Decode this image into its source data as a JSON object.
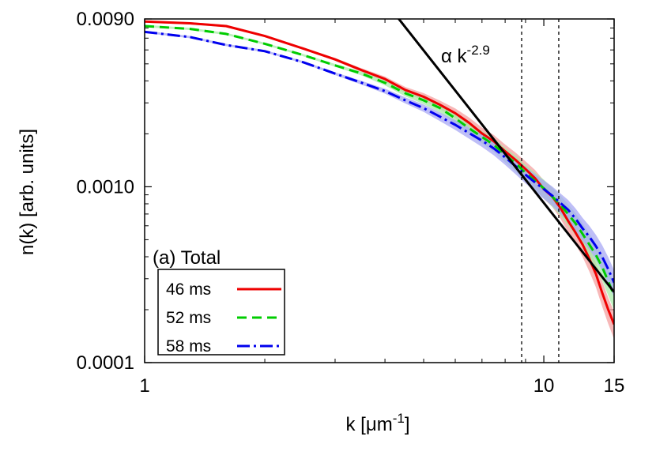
{
  "chart_data": {
    "type": "line",
    "panel_label": "(a) Total",
    "xlabel_main": "k [",
    "xlabel_unit": "μm",
    "xlabel_exp": "-1",
    "xlabel_end": "]",
    "ylabel": "n(k) [arb. units]",
    "x_scale": "log",
    "y_scale": "log",
    "xlim": [
      1,
      15
    ],
    "ylim": [
      0.0001,
      0.009
    ],
    "x_ticks": [
      {
        "value": 1,
        "label": "1"
      },
      {
        "value": 10,
        "label": "10"
      },
      {
        "value": 15,
        "label": "15"
      }
    ],
    "y_ticks": [
      {
        "value": 0.0001,
        "label": "0.0001"
      },
      {
        "value": 0.001,
        "label": "0.0010"
      },
      {
        "value": 0.009,
        "label": "0.0090"
      }
    ],
    "vertical_lines": [
      8.8,
      10.9
    ],
    "fit_line": {
      "label_prefix": "α k",
      "label_exp": "-2.9",
      "x": [
        4.3,
        15
      ],
      "y": [
        0.0092,
        0.000252
      ]
    },
    "legend_position": "bottom-left",
    "series": [
      {
        "name": "46 ms",
        "color": "#ee0000",
        "band_color": "#f4a0a0",
        "dash": "solid",
        "x": [
          1.0,
          1.3,
          1.6,
          2.0,
          2.5,
          3.0,
          3.5,
          4.0,
          4.5,
          5.0,
          5.5,
          6.0,
          6.5,
          7.0,
          7.5,
          8.0,
          8.5,
          9.0,
          9.5,
          10.0,
          10.5,
          11.0,
          11.5,
          12.0,
          12.5,
          13.0,
          13.5,
          14.0,
          14.5,
          15.0
        ],
        "y": [
          0.0087,
          0.0085,
          0.0082,
          0.0072,
          0.0061,
          0.0053,
          0.0046,
          0.0041,
          0.00355,
          0.00325,
          0.00292,
          0.00262,
          0.00231,
          0.00201,
          0.00181,
          0.00159,
          0.00142,
          0.00126,
          0.00112,
          0.00097,
          0.00088,
          0.00076,
          0.00064,
          0.00055,
          0.00047,
          0.00039,
          0.00032,
          0.00025,
          0.0002,
          0.000165
        ]
      },
      {
        "name": "52 ms",
        "color": "#00cc00",
        "band_color": "#a8eca8",
        "dash": "dashed",
        "x": [
          1.0,
          1.3,
          1.6,
          2.0,
          2.5,
          3.0,
          3.5,
          4.0,
          4.5,
          5.0,
          5.5,
          6.0,
          6.5,
          7.0,
          7.5,
          8.0,
          8.5,
          9.0,
          9.5,
          10.0,
          10.5,
          11.0,
          11.5,
          12.0,
          12.5,
          13.0,
          13.5,
          14.0,
          14.5,
          15.0
        ],
        "y": [
          0.0082,
          0.0079,
          0.0074,
          0.0065,
          0.0056,
          0.0049,
          0.0044,
          0.0039,
          0.0034,
          0.0031,
          0.0028,
          0.00245,
          0.00215,
          0.00192,
          0.00173,
          0.00152,
          0.00136,
          0.0012,
          0.00108,
          0.00098,
          0.00088,
          0.00079,
          0.0007,
          0.00062,
          0.00054,
          0.00047,
          0.00041,
          0.00035,
          0.00029,
          0.00024
        ]
      },
      {
        "name": "58 ms",
        "color": "#0000ee",
        "band_color": "#a8a8f4",
        "dash": "dash-dot",
        "x": [
          1.0,
          1.3,
          1.6,
          2.0,
          2.5,
          3.0,
          3.5,
          4.0,
          4.5,
          5.0,
          5.5,
          6.0,
          6.5,
          7.0,
          7.5,
          8.0,
          8.5,
          9.0,
          9.5,
          10.0,
          10.5,
          11.0,
          11.5,
          12.0,
          12.5,
          13.0,
          13.5,
          14.0,
          14.5,
          15.0
        ],
        "y": [
          0.0076,
          0.0071,
          0.0064,
          0.0059,
          0.0051,
          0.0044,
          0.0039,
          0.0035,
          0.0031,
          0.0028,
          0.0025,
          0.00225,
          0.00202,
          0.00183,
          0.00165,
          0.00147,
          0.00131,
          0.00117,
          0.00106,
          0.00097,
          0.00089,
          0.00081,
          0.00074,
          0.00066,
          0.00058,
          0.00052,
          0.00046,
          0.0004,
          0.00034,
          0.000285
        ]
      }
    ]
  }
}
